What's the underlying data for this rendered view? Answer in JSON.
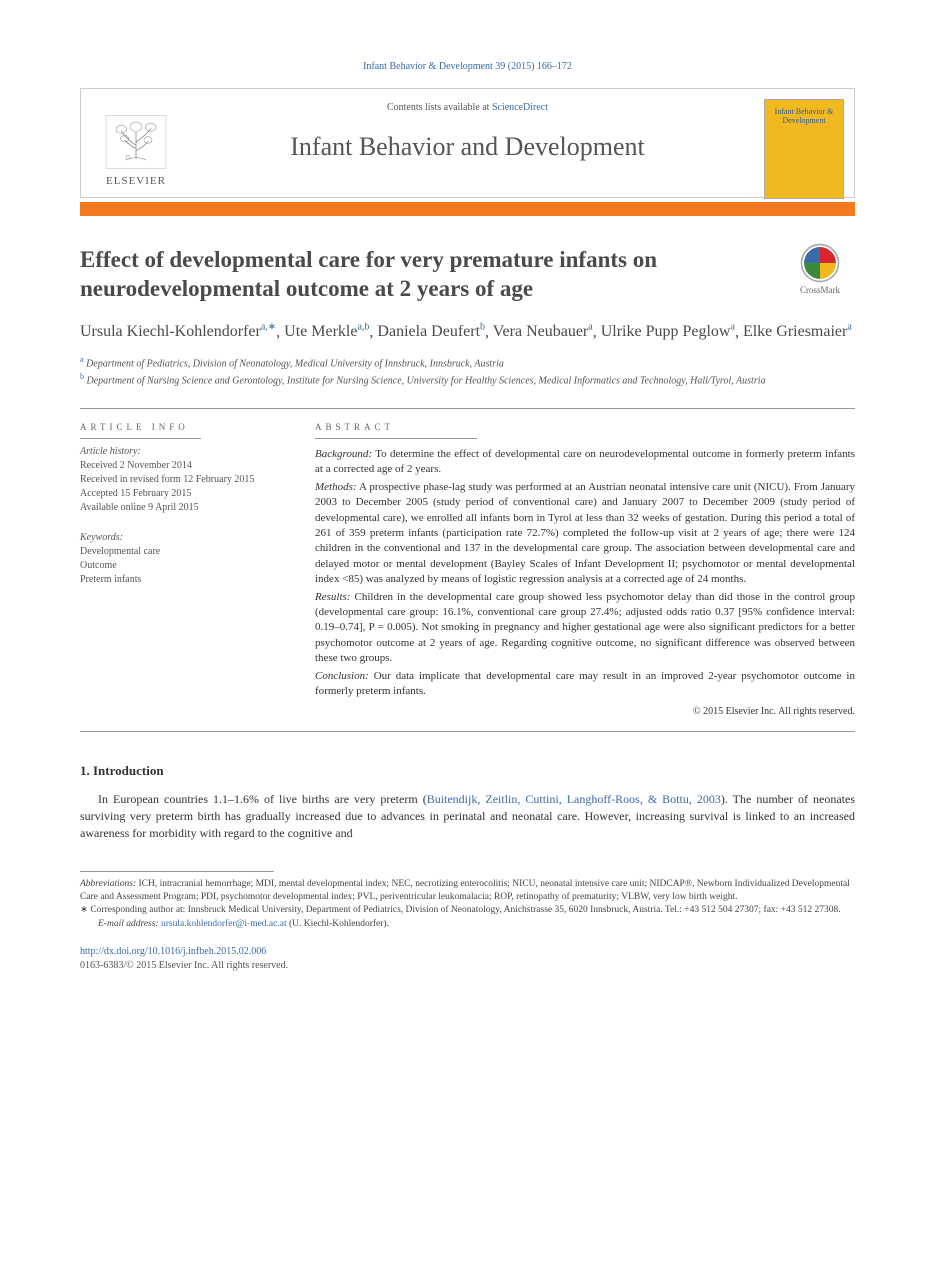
{
  "citation": "Infant Behavior & Development 39 (2015) 166–172",
  "masthead": {
    "contents_prefix": "Contents lists available at ",
    "contents_link": "ScienceDirect",
    "journal_name": "Infant Behavior and Development",
    "publisher_name": "ELSEVIER",
    "cover_title": "Infant Behavior & Development"
  },
  "crossmark_label": "CrossMark",
  "article": {
    "title": "Effect of developmental care for very premature infants on neurodevelopmental outcome at 2 years of age",
    "authors_html": "Ursula Kiechl-Kohlendorfer|a,∗|, Ute Merkle|a,b|, Daniela Deufert|b|, Vera Neubauer|a|, Ulrike Pupp Peglow|a|, Elke Griesmaier|a|",
    "affiliations": [
      {
        "sup": "a",
        "text": "Department of Pediatrics, Division of Neonatology, Medical University of Innsbruck, Innsbruck, Austria"
      },
      {
        "sup": "b",
        "text": "Department of Nursing Science and Gerontology, Institute for Nursing Science, University for Healthy Sciences, Medical Informatics and Technology, Hall/Tyrol, Austria"
      }
    ]
  },
  "info": {
    "head": "ARTICLE INFO",
    "history_head": "Article history:",
    "history": [
      "Received 2 November 2014",
      "Received in revised form 12 February 2015",
      "Accepted 15 February 2015",
      "Available online 9 April 2015"
    ],
    "keywords_head": "Keywords:",
    "keywords": [
      "Developmental care",
      "Outcome",
      "Preterm infants"
    ]
  },
  "abstract": {
    "head": "ABSTRACT",
    "paras": [
      {
        "head": "Background:",
        "text": " To determine the effect of developmental care on neurodevelopmental outcome in formerly preterm infants at a corrected age of 2 years."
      },
      {
        "head": "Methods:",
        "text": " A prospective phase-lag study was performed at an Austrian neonatal intensive care unit (NICU). From January 2003 to December 2005 (study period of conventional care) and January 2007 to December 2009 (study period of developmental care), we enrolled all infants born in Tyrol at less than 32 weeks of gestation. During this period a total of 261 of 359 preterm infants (participation rate 72.7%) completed the follow-up visit at 2 years of age; there were 124 children in the conventional and 137 in the developmental care group. The association between developmental care and delayed motor or mental development (Bayley Scales of Infant Development II; psychomotor or mental developmental index <85) was analyzed by means of logistic regression analysis at a corrected age of 24 months."
      },
      {
        "head": "Results:",
        "text": " Children in the developmental care group showed less psychomotor delay than did those in the control group (developmental care group: 16.1%, conventional care group 27.4%; adjusted odds ratio 0.37 [95% confidence interval: 0.19–0.74], P = 0.005). Not smoking in pregnancy and higher gestational age were also significant predictors for a better psychomotor outcome at 2 years of age. Regarding cognitive outcome, no significant difference was observed between these two groups."
      },
      {
        "head": "Conclusion:",
        "text": " Our data implicate that developmental care may result in an improved 2-year psychomotor outcome in formerly preterm infants."
      }
    ],
    "copyright": "© 2015 Elsevier Inc. All rights reserved."
  },
  "body": {
    "section_num": "1.  Introduction",
    "para1_pre": "In European countries 1.1–1.6% of live births are very preterm (",
    "para1_cite": "Buitendijk, Zeitlin, Cuttini, Langhoff-Roos, & Bottu, 2003",
    "para1_post": "). The number of neonates surviving very preterm birth has gradually increased due to advances in perinatal and neonatal care. However, increasing survival is linked to an increased awareness for morbidity with regard to the cognitive and"
  },
  "footnotes": {
    "abbrev_head": "Abbreviations:",
    "abbrev_text": " ICH, intracranial hemorrhage; MDI, mental developmental index; NEC, necrotizing enterocolitis; NICU, neonatal intensive care unit; NIDCAP®, Newborn Individualized Developmental Care and Assessment Program; PDI, psychomotor developmental index; PVL, periventricular leukomalacia; ROP, retinopathy of prematurity; VLBW, very low birth weight.",
    "corr_mark": "∗",
    "corr_text": " Corresponding author at: Innsbruck Medical University, Department of Pediatrics, Division of Neonatology, Anichstrasse 35, 6020 Innsbruck, Austria. Tel.: +43 512 504 27307; fax: +43 512 27308.",
    "email_head": "E-mail address:",
    "email": "ursula.kohlendorfer@i-med.ac.at",
    "email_who": " (U. Kiechl-Kohlendorfer)."
  },
  "doi": {
    "url": "http://dx.doi.org/10.1016/j.infbeh.2015.02.006",
    "line2": "0163-6383/© 2015 Elsevier Inc. All rights reserved."
  },
  "colors": {
    "accent_orange": "#f47a20",
    "link_blue": "#3a6aa8",
    "cover_yellow": "#f2b81f"
  }
}
